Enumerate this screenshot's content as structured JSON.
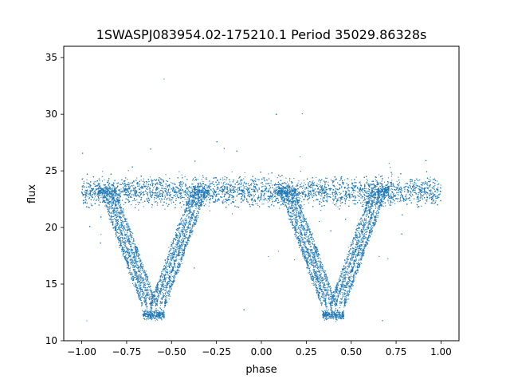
{
  "chart_data": {
    "type": "scatter",
    "title": "1SWASPJ083954.02-175210.1 Period 35029.86328s",
    "xlabel": "phase",
    "ylabel": "flux",
    "xlim": [
      -1.1,
      1.1
    ],
    "ylim": [
      10,
      36
    ],
    "x_ticks": [
      -1.0,
      -0.75,
      -0.5,
      -0.25,
      0.0,
      0.25,
      0.5,
      0.75,
      1.0
    ],
    "x_tick_labels": [
      "−1.00",
      "−0.75",
      "−0.50",
      "−0.25",
      "0.00",
      "0.25",
      "0.50",
      "0.75",
      "1.00"
    ],
    "y_ticks": [
      10,
      15,
      20,
      25,
      30,
      35
    ],
    "y_tick_labels": [
      "10",
      "15",
      "20",
      "25",
      "30",
      "35"
    ],
    "grid": false,
    "marker_color": "#1f77b4",
    "series": [
      {
        "description": "phase-folded light curve (approximate envelope)",
        "baseline_flux": 23.2,
        "baseline_scatter": 0.6,
        "phase_range": [
          -1.0,
          1.0
        ],
        "eclipses": [
          {
            "center_phase": -0.6,
            "min_flux": 12.3,
            "half_width": 0.3
          },
          {
            "center_phase": 0.4,
            "min_flux": 12.3,
            "half_width": 0.3
          }
        ],
        "points": [
          {
            "x": -1.0,
            "y": 23.3
          },
          {
            "x": -0.95,
            "y": 23.2
          },
          {
            "x": -0.9,
            "y": 23.1
          },
          {
            "x": -0.85,
            "y": 22.6
          },
          {
            "x": -0.8,
            "y": 20.5
          },
          {
            "x": -0.75,
            "y": 18.5
          },
          {
            "x": -0.7,
            "y": 16.0
          },
          {
            "x": -0.65,
            "y": 13.5
          },
          {
            "x": -0.6,
            "y": 12.3
          },
          {
            "x": -0.55,
            "y": 13.5
          },
          {
            "x": -0.5,
            "y": 16.0
          },
          {
            "x": -0.45,
            "y": 18.5
          },
          {
            "x": -0.4,
            "y": 20.5
          },
          {
            "x": -0.35,
            "y": 22.4
          },
          {
            "x": -0.3,
            "y": 23.1
          },
          {
            "x": -0.2,
            "y": 23.2
          },
          {
            "x": -0.1,
            "y": 23.3
          },
          {
            "x": 0.0,
            "y": 23.2
          },
          {
            "x": 0.1,
            "y": 23.3
          },
          {
            "x": 0.15,
            "y": 22.6
          },
          {
            "x": 0.2,
            "y": 20.5
          },
          {
            "x": 0.25,
            "y": 18.5
          },
          {
            "x": 0.3,
            "y": 16.0
          },
          {
            "x": 0.35,
            "y": 13.5
          },
          {
            "x": 0.4,
            "y": 12.3
          },
          {
            "x": 0.45,
            "y": 13.5
          },
          {
            "x": 0.5,
            "y": 16.0
          },
          {
            "x": 0.55,
            "y": 18.5
          },
          {
            "x": 0.6,
            "y": 20.5
          },
          {
            "x": 0.65,
            "y": 22.4
          },
          {
            "x": 0.7,
            "y": 23.1
          },
          {
            "x": 0.8,
            "y": 23.2
          },
          {
            "x": 0.9,
            "y": 23.3
          },
          {
            "x": 1.0,
            "y": 23.2
          }
        ]
      }
    ]
  }
}
